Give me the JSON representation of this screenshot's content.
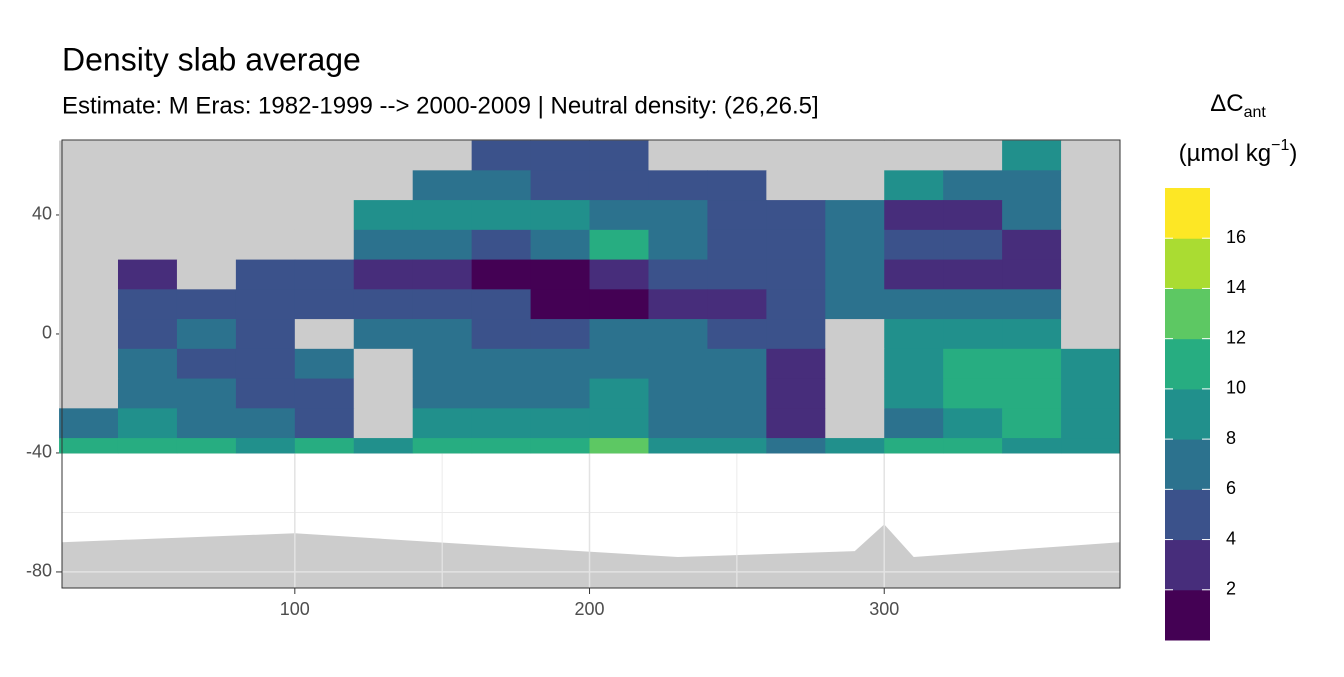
{
  "chart_data": {
    "type": "raster",
    "title": "Density slab average",
    "subtitle": "Estimate: M Eras: 1982-1999 --> 2000-2009 | Neutral density: (26,26.5]",
    "xlim": [
      21,
      380
    ],
    "ylim": [
      -85.4,
      65.2
    ],
    "xticks": [
      100,
      200,
      300
    ],
    "yticks": [
      40,
      0,
      -40,
      -80
    ],
    "grid": true,
    "x": [
      30,
      50,
      70,
      90,
      110,
      130,
      150,
      170,
      190,
      210,
      230,
      250,
      270,
      290,
      310,
      330,
      350,
      370
    ],
    "y": [
      60,
      50,
      40,
      30,
      20,
      10,
      0,
      -10,
      -20,
      -30,
      -40
    ],
    "values": [
      [
        null,
        null,
        null,
        null,
        null,
        null,
        null,
        5,
        5,
        5,
        null,
        null,
        null,
        null,
        null,
        null,
        8,
        null
      ],
      [
        null,
        null,
        null,
        null,
        null,
        null,
        7,
        6,
        5,
        4,
        5,
        5,
        null,
        null,
        8,
        7,
        7,
        null
      ],
      [
        null,
        null,
        null,
        null,
        null,
        8,
        9,
        9,
        8,
        7,
        6,
        5,
        5,
        7,
        2,
        3,
        6,
        null
      ],
      [
        null,
        null,
        null,
        null,
        null,
        7,
        6,
        5,
        7,
        10,
        6,
        5,
        4,
        6,
        4,
        5,
        3,
        null
      ],
      [
        null,
        3,
        null,
        4,
        5,
        2,
        3,
        1,
        1,
        3,
        4,
        4,
        5,
        6,
        3,
        2,
        3,
        null
      ],
      [
        null,
        4,
        4,
        4,
        5,
        4,
        5,
        4,
        1,
        1,
        2,
        3,
        4,
        6,
        6,
        7,
        7,
        null
      ],
      [
        null,
        5,
        6,
        5,
        null,
        6,
        6,
        5,
        5,
        6,
        6,
        5,
        5,
        null,
        8,
        8,
        9,
        null
      ],
      [
        null,
        6,
        5,
        5,
        6,
        null,
        6,
        6,
        7,
        7,
        7,
        7,
        3,
        null,
        9,
        10,
        11,
        9
      ],
      [
        null,
        7,
        6,
        5,
        4,
        null,
        7,
        7,
        7,
        8,
        7,
        6,
        2,
        null,
        8,
        10,
        10,
        9
      ],
      [
        6,
        8,
        7,
        7,
        5,
        null,
        8,
        9,
        8,
        8,
        7,
        6,
        2,
        null,
        7,
        8,
        10,
        9
      ],
      [
        10,
        10,
        11,
        9,
        10,
        9,
        10,
        10,
        11,
        12,
        9,
        8,
        7,
        8,
        10,
        10,
        9,
        9
      ]
    ],
    "legend": {
      "title": {
        "main": "ΔC",
        "sub": "ant"
      },
      "unit": {
        "pre": "(µmol kg",
        "sup": "−1",
        "post": ")"
      },
      "limits": [
        0,
        18
      ],
      "breaks": [
        2,
        4,
        6,
        8,
        10,
        12,
        14,
        16
      ],
      "colors": [
        "#440154",
        "#472d7b",
        "#3b528b",
        "#2c728e",
        "#21908c",
        "#27ad81",
        "#5dc863",
        "#aadc32",
        "#fde725"
      ]
    }
  }
}
